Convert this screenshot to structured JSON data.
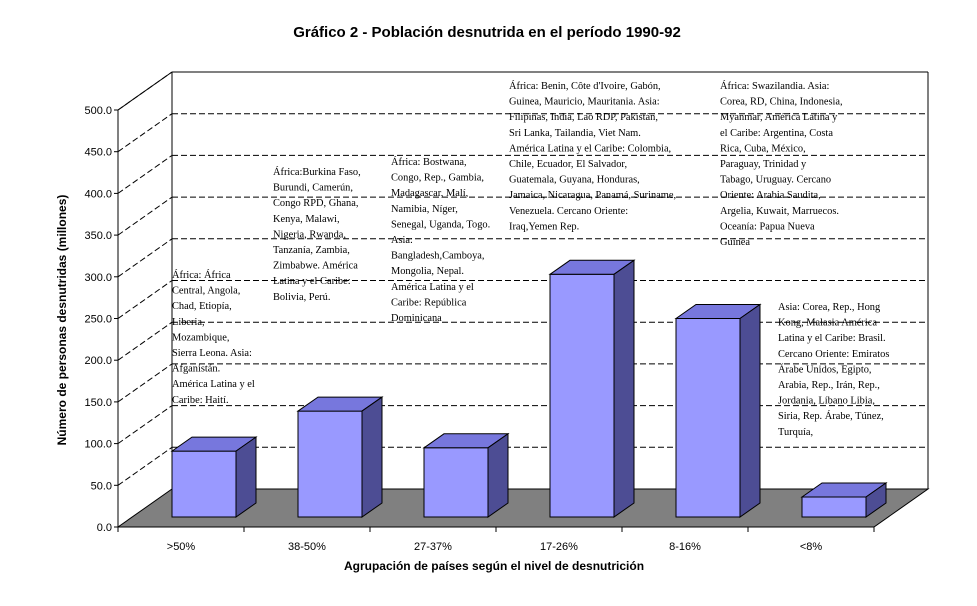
{
  "chart_data": {
    "type": "bar",
    "title": "Gráfico 2 - Población desnutrida en el período 1990-92",
    "xlabel": "Agrupación de países según el nivel de desnutrición",
    "ylabel": "Número de personas desnutridas (millones)",
    "ylim": [
      0,
      500
    ],
    "ytick_labels": [
      "0.0",
      "50.0",
      "100.0",
      "150.0",
      "200.0",
      "250.0",
      "300.0",
      "350.0",
      "400.0",
      "450.0",
      "500.0"
    ],
    "grid": true,
    "legend": "none",
    "categories": [
      ">50%",
      "38-50%",
      "27-37%",
      "17-26%",
      "8-16%",
      "<8%"
    ],
    "values": [
      79,
      127,
      83,
      291,
      238,
      24
    ],
    "annotations": [
      [
        "África: África",
        "Central, Angola,",
        "Chad, Etiopía,",
        "Liberia,",
        "Mozambique,",
        "Sierra Leona. Asia:",
        "Afganistán.",
        "América Latina y el",
        "Caribe: Haití."
      ],
      [
        "África:Burkina Faso,",
        "Burundi, Camerún,",
        "Congo RPD, Ghana,",
        "Kenya, Malawi,",
        "Nigeria, Rwanda,",
        "Tanzanía, Zambia,",
        "Zimbabwe. América",
        "Latina y el Caribe:",
        "Bolivia, Perú."
      ],
      [
        "África: Bostwana,",
        "Congo, Rep., Gambia,",
        "Madagascar, Malí,",
        "Namibia, Níger,",
        "Senegal, Uganda, Togo.",
        "Asia:",
        "Bangladesh,Camboya,",
        "Mongolia, Nepal.",
        "América Latina y el",
        "Caribe: República",
        "Dominicana"
      ],
      [
        " África: Benin, Côte d'Ivoire, Gabón,",
        "Guinea, Mauricio, Mauritania. Asia:",
        "Filipinas, India, Lao RDP,  Pakistán,",
        "Sri Lanka, Tailandia, Viet Nam.",
        "América Latina y el Caribe: Colombia,",
        "Chile, Ecuador, El Salvador,",
        "Guatemala, Guyana, Honduras,",
        "Jamaica, Nicaragua, Panamá, Suriname,",
        "Venezuela. Cercano Oriente:",
        "Iraq,Yemen Rep."
      ],
      [
        "África: Swazilandia. Asia:",
        "Corea, RD, China, Indonesia,",
        "Myanmar, América Latina y",
        "el Caribe: Argentina, Costa",
        "Rica, Cuba, México,",
        "Paraguay, Trinidad y",
        "Tabago, Uruguay. Cercano",
        "Oriente: Arabia Saudita,",
        "Argelia, Kuwait, Marruecos.",
        "Oceanía: Papua Nueva",
        "Guinea"
      ],
      [
        "Asia: Corea, Rep., Hong",
        "Kong, Malasia América",
        "Latina y el Caribe: Brasil.",
        "Cercano Oriente:  Emiratos",
        "Árabe Unidos, Egipto,",
        "Arabia, Rep., Irán, Rep.,",
        "Jordania, Líbano Libia,",
        "Siria, Rep. Árabe, Túnez,",
        "Turquía,"
      ]
    ],
    "colors": {
      "bar_front": "#9999ff",
      "bar_top": "#7777dd",
      "bar_side": "#4d4d94",
      "floor": "#808080",
      "outline": "#000000"
    }
  }
}
